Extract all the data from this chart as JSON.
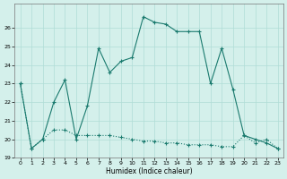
{
  "xlabel": "Humidex (Indice chaleur)",
  "x": [
    0,
    1,
    2,
    3,
    4,
    5,
    6,
    7,
    8,
    9,
    10,
    11,
    12,
    13,
    14,
    15,
    16,
    17,
    18,
    19,
    20,
    21,
    22,
    23
  ],
  "line_diamond": [
    23.0,
    19.5,
    20.0,
    20.5,
    20.5,
    20.2,
    20.2,
    20.2,
    20.2,
    20.1,
    20.0,
    19.9,
    19.9,
    19.8,
    19.8,
    19.7,
    19.7,
    19.7,
    19.6,
    19.6,
    20.2,
    19.8,
    20.0,
    19.5
  ],
  "line_upper": [
    23.0,
    19.5,
    20.0,
    22.0,
    23.2,
    20.0,
    21.8,
    24.9,
    23.6,
    24.2,
    24.4,
    26.6,
    26.3,
    26.2,
    25.8,
    25.8,
    25.8,
    23.0,
    24.9,
    22.7,
    20.2,
    20.0,
    19.8,
    19.5
  ],
  "line_color": "#1a7a6e",
  "bg_color": "#d4f0eb",
  "grid_color": "#b0ddd6",
  "ylim": [
    19,
    27
  ],
  "xlim": [
    -0.5,
    23.5
  ],
  "yticks": [
    19,
    20,
    21,
    22,
    23,
    24,
    25,
    26
  ],
  "xticks": [
    0,
    1,
    2,
    3,
    4,
    5,
    6,
    7,
    8,
    9,
    10,
    11,
    12,
    13,
    14,
    15,
    16,
    17,
    18,
    19,
    20,
    21,
    22,
    23
  ]
}
